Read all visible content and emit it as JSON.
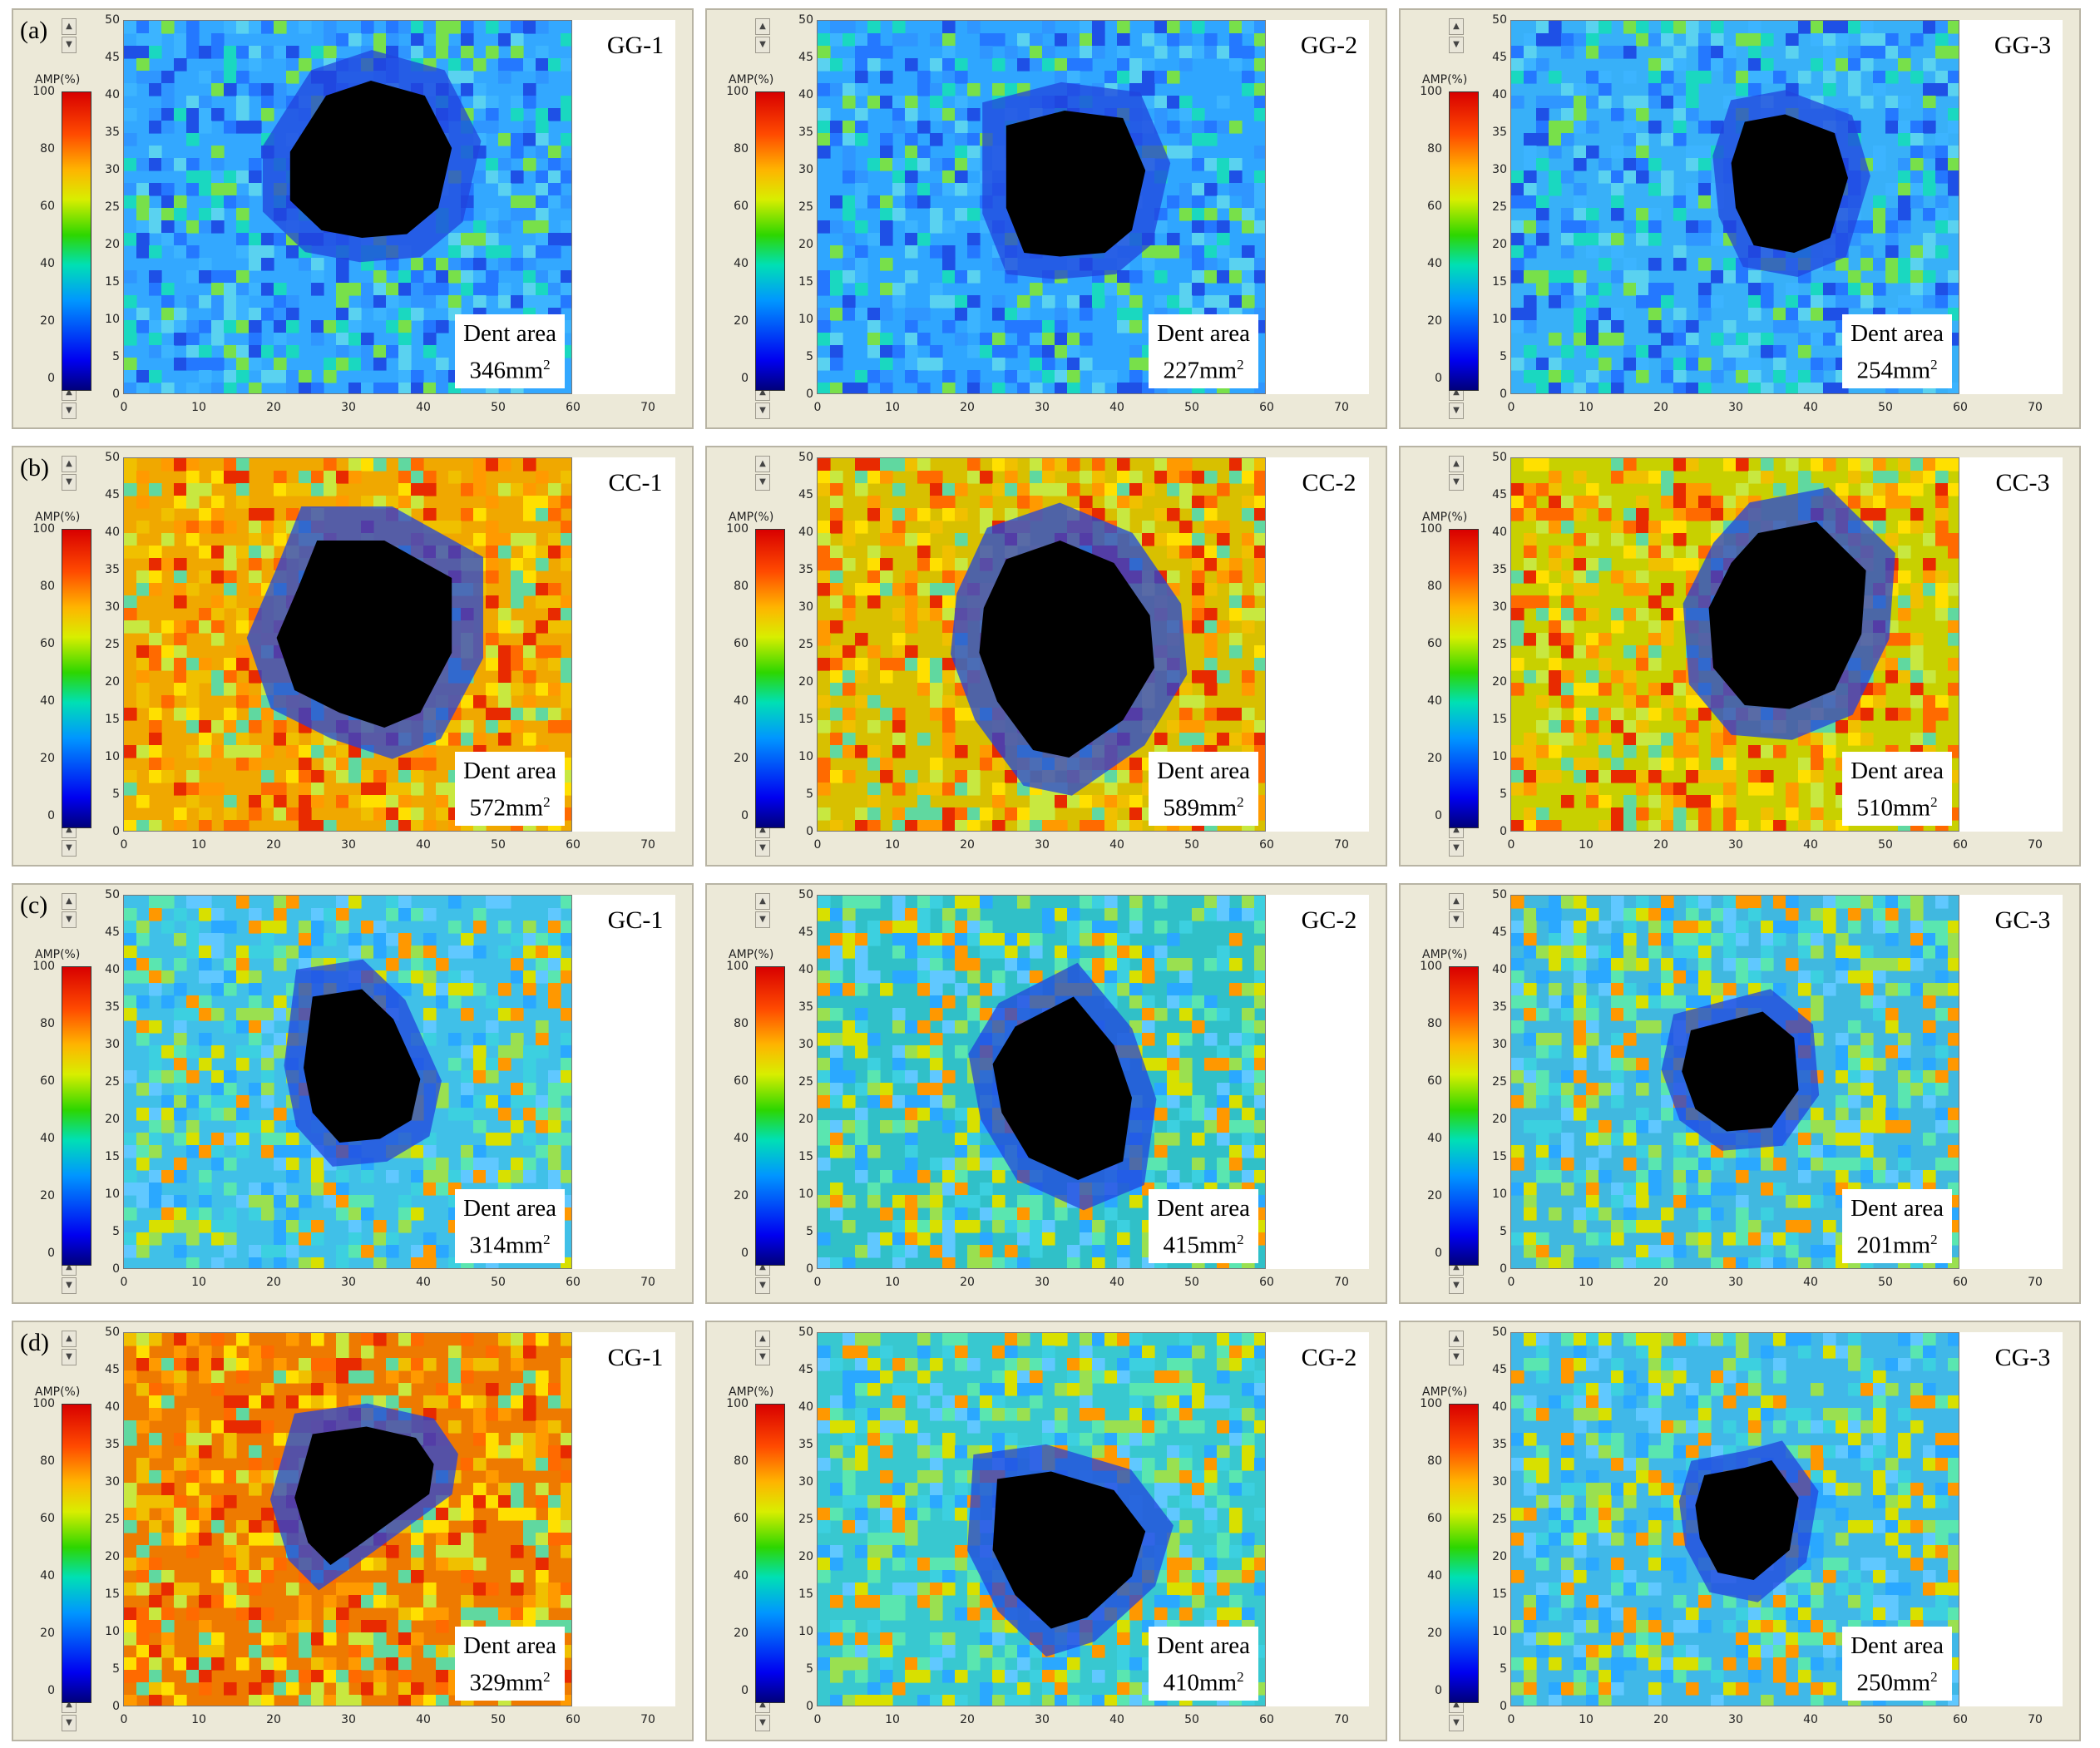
{
  "panel_letters": [
    "(a)",
    "(b)",
    "(c)",
    "(d)"
  ],
  "colorbar": {
    "title": "AMP(%)",
    "ticks": [
      "100",
      "80",
      "60",
      "40",
      "20",
      "0"
    ]
  },
  "y_axis": {
    "ticks": [
      "50",
      "45",
      "40",
      "35",
      "30",
      "25",
      "20",
      "15",
      "10",
      "5",
      "0"
    ]
  },
  "x_axis": {
    "ticks": [
      "0",
      "10",
      "20",
      "30",
      "40",
      "50",
      "60",
      "70"
    ]
  },
  "dent_label": "Dent area",
  "area_unit": "mm",
  "area_exponent": "2",
  "rows": [
    {
      "panels": [
        {
          "name": "GG-1",
          "area": "346",
          "bg": "#33a8ff"
        },
        {
          "name": "GG-2",
          "area": "227",
          "bg": "#2fa6ff"
        },
        {
          "name": "GG-3",
          "area": "254",
          "bg": "#38b0f8"
        }
      ]
    },
    {
      "panels": [
        {
          "name": "CC-1",
          "area": "572",
          "bg": "#f0a800"
        },
        {
          "name": "CC-2",
          "area": "589",
          "bg": "#d8c000"
        },
        {
          "name": "CC-3",
          "area": "510",
          "bg": "#c8d000"
        }
      ]
    },
    {
      "panels": [
        {
          "name": "GC-1",
          "area": "314",
          "bg": "#40c0e8"
        },
        {
          "name": "GC-2",
          "area": "415",
          "bg": "#30c0c8"
        },
        {
          "name": "GC-3",
          "area": "201",
          "bg": "#40b8e0"
        }
      ]
    },
    {
      "panels": [
        {
          "name": "CG-1",
          "area": "329",
          "bg": "#ee7a00"
        },
        {
          "name": "CG-2",
          "area": "410",
          "bg": "#38c8d0"
        },
        {
          "name": "CG-3",
          "area": "250",
          "bg": "#40b8e8"
        }
      ]
    }
  ],
  "colors": {
    "dent": "#000000",
    "panel_bg": "#ece9d8"
  }
}
